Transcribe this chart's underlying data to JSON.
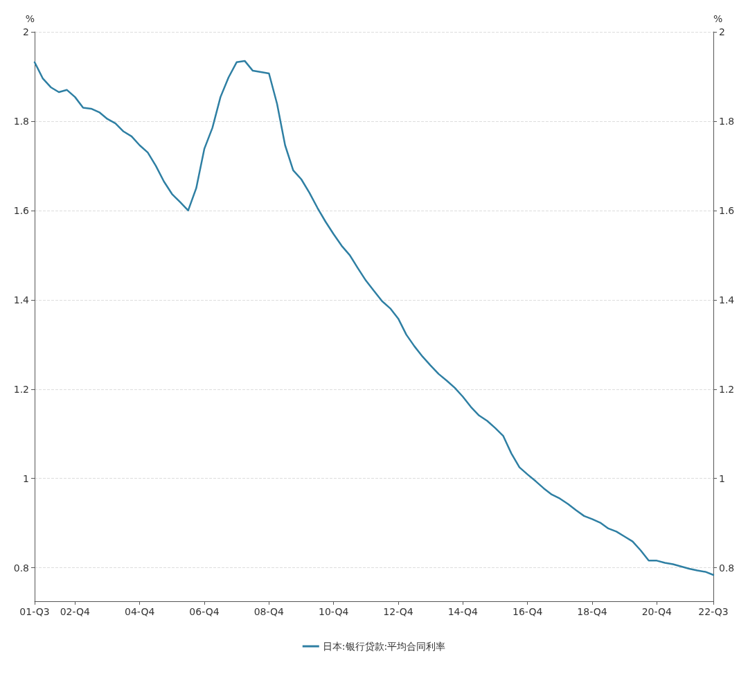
{
  "chart_data": {
    "type": "line",
    "ylabel": "%",
    "y2label": "%",
    "categories": [
      "01-Q3",
      null,
      null,
      null,
      null,
      "02-Q4",
      null,
      null,
      null,
      null,
      null,
      null,
      null,
      "04-Q4",
      null,
      null,
      null,
      null,
      null,
      null,
      null,
      "06-Q4",
      null,
      null,
      null,
      null,
      null,
      null,
      null,
      "08-Q4",
      null,
      null,
      null,
      null,
      null,
      null,
      null,
      "10-Q4",
      null,
      null,
      null,
      null,
      null,
      null,
      null,
      "12-Q4",
      null,
      null,
      null,
      null,
      null,
      null,
      null,
      "14-Q4",
      null,
      null,
      null,
      null,
      null,
      null,
      null,
      "16-Q4",
      null,
      null,
      null,
      null,
      null,
      null,
      null,
      "18-Q4",
      null,
      null,
      null,
      null,
      null,
      null,
      null,
      "20-Q4",
      null,
      null,
      null,
      null,
      null,
      null,
      "22-Q3"
    ],
    "series": [
      {
        "name": "日本:银行贷款:平均合同利率",
        "color": "#2e7fa3",
        "values": [
          1.932,
          1.896,
          1.876,
          1.865,
          1.87,
          1.854,
          1.83,
          1.828,
          1.82,
          1.805,
          1.795,
          1.777,
          1.766,
          1.746,
          1.73,
          1.7,
          1.665,
          1.637,
          1.619,
          1.6,
          1.65,
          1.738,
          1.785,
          1.854,
          1.898,
          1.932,
          1.935,
          1.913,
          1.91,
          1.907,
          1.839,
          1.746,
          1.69,
          1.67,
          1.64,
          1.606,
          1.575,
          1.547,
          1.521,
          1.5,
          1.471,
          1.443,
          1.42,
          1.397,
          1.381,
          1.358,
          1.322,
          1.296,
          1.273,
          1.253,
          1.234,
          1.219,
          1.203,
          1.183,
          1.16,
          1.141,
          1.129,
          1.113,
          1.095,
          1.056,
          1.025,
          1.009,
          0.994,
          0.978,
          0.964,
          0.955,
          0.943,
          0.929,
          0.916,
          0.909,
          0.901,
          0.888,
          0.881,
          0.87,
          0.859,
          0.839,
          0.816,
          0.816,
          0.811,
          0.808,
          0.803,
          0.798,
          0.794,
          0.791,
          0.784
        ]
      }
    ],
    "ylim": [
      0.725,
      2
    ],
    "yticks": [
      0.8,
      1,
      1.2,
      1.4,
      1.6,
      1.8,
      2
    ],
    "y2lim": [
      0.725,
      2
    ],
    "y2ticks": [
      0.8,
      1,
      1.2,
      1.4,
      1.6,
      1.8,
      2
    ],
    "grid": "y",
    "legend": "bottom",
    "marker": "none",
    "line_style": "solid"
  }
}
